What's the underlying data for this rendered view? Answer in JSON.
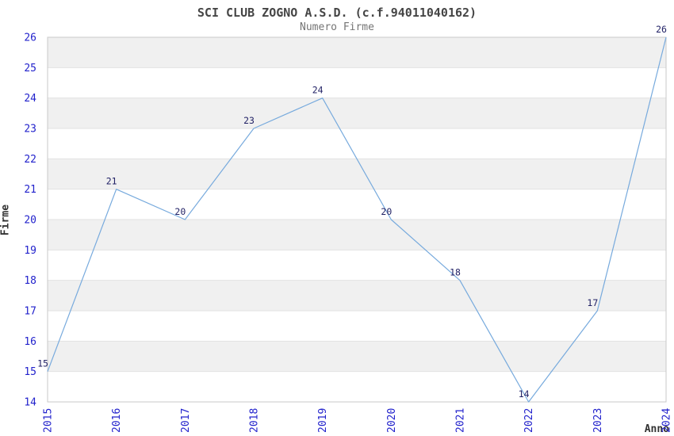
{
  "chart_data": {
    "type": "line",
    "title": "SCI CLUB ZOGNO A.S.D. (c.f.94011040162)",
    "subtitle": "Numero Firme",
    "xlabel": "Anno",
    "ylabel": "Firme",
    "categories": [
      "2015",
      "2016",
      "2017",
      "2018",
      "2019",
      "2020",
      "2021",
      "2022",
      "2023",
      "2024"
    ],
    "values": [
      15,
      21,
      20,
      23,
      24,
      20,
      18,
      14,
      17,
      26
    ],
    "ylim": [
      14,
      26
    ],
    "ytick_step": 1,
    "yticks": [
      "14",
      "15",
      "16",
      "17",
      "18",
      "19",
      "20",
      "21",
      "22",
      "23",
      "24",
      "25",
      "26"
    ],
    "grid": "horizontal-bands-alternating",
    "legend_position": "none",
    "colors": {
      "line": "#77aadd",
      "tick_label": "#2222cc",
      "point_label": "#222266",
      "band_gray": "#f0f0f0",
      "band_white": "#ffffff",
      "gridline": "#e2e2e2",
      "plot_border": "#c9c9c9",
      "title": "#454545",
      "subtitle": "#757575",
      "axis_title": "#333333"
    }
  }
}
